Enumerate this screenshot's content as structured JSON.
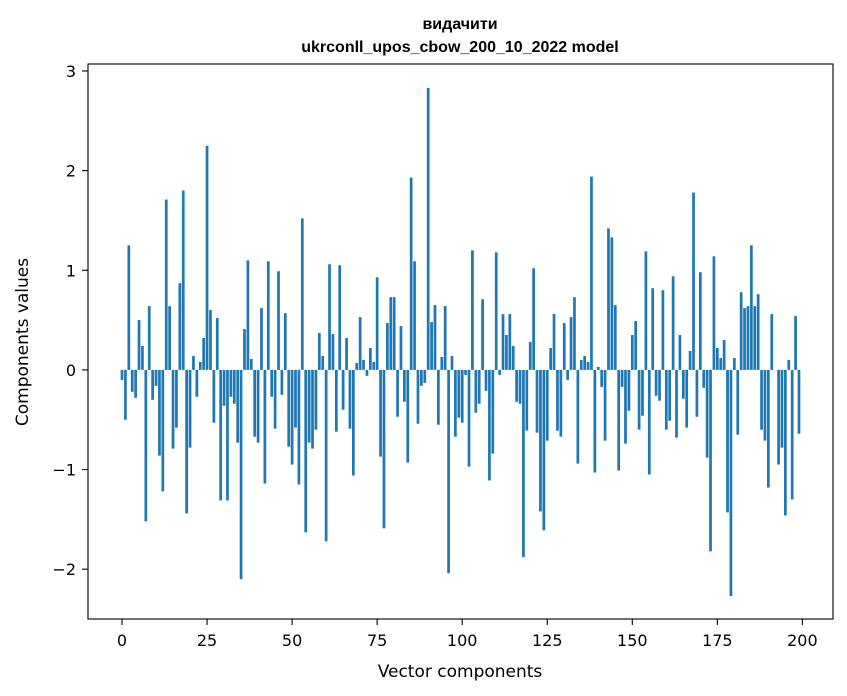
{
  "chart_data": {
    "type": "bar",
    "title_line1": "видачити",
    "title_line2": "ukrconll_upos_cbow_200_10_2022 model",
    "xlabel": "Vector components",
    "ylabel": "Components values",
    "xlim": [
      -10,
      209
    ],
    "ylim": [
      -2.5,
      3.07
    ],
    "xticks": [
      0,
      25,
      50,
      75,
      100,
      125,
      150,
      175,
      200
    ],
    "yticks": [
      -2,
      -1,
      0,
      1,
      2,
      3
    ],
    "ytick_labels": [
      "−2",
      "−1",
      "0",
      "1",
      "2",
      "3"
    ],
    "grid": false,
    "bar_color": "#1f77b4",
    "x": [
      0,
      1,
      2,
      3,
      4,
      5,
      6,
      7,
      8,
      9,
      10,
      11,
      12,
      13,
      14,
      15,
      16,
      17,
      18,
      19,
      20,
      21,
      22,
      23,
      24,
      25,
      26,
      27,
      28,
      29,
      30,
      31,
      32,
      33,
      34,
      35,
      36,
      37,
      38,
      39,
      40,
      41,
      42,
      43,
      44,
      45,
      46,
      47,
      48,
      49,
      50,
      51,
      52,
      53,
      54,
      55,
      56,
      57,
      58,
      59,
      60,
      61,
      62,
      63,
      64,
      65,
      66,
      67,
      68,
      69,
      70,
      71,
      72,
      73,
      74,
      75,
      76,
      77,
      78,
      79,
      80,
      81,
      82,
      83,
      84,
      85,
      86,
      87,
      88,
      89,
      90,
      91,
      92,
      93,
      94,
      95,
      96,
      97,
      98,
      99,
      100,
      101,
      102,
      103,
      104,
      105,
      106,
      107,
      108,
      109,
      110,
      111,
      112,
      113,
      114,
      115,
      116,
      117,
      118,
      119,
      120,
      121,
      122,
      123,
      124,
      125,
      126,
      127,
      128,
      129,
      130,
      131,
      132,
      133,
      134,
      135,
      136,
      137,
      138,
      139,
      140,
      141,
      142,
      143,
      144,
      145,
      146,
      147,
      148,
      149,
      150,
      151,
      152,
      153,
      154,
      155,
      156,
      157,
      158,
      159,
      160,
      161,
      162,
      163,
      164,
      165,
      166,
      167,
      168,
      169,
      170,
      171,
      172,
      173,
      174,
      175,
      176,
      177,
      178,
      179,
      180,
      181,
      182,
      183,
      184,
      185,
      186,
      187,
      188,
      189,
      190,
      191,
      192,
      193,
      194,
      195,
      196,
      197,
      198,
      199
    ],
    "values": [
      -0.1,
      -0.5,
      1.25,
      -0.22,
      -0.28,
      0.5,
      0.24,
      -1.52,
      0.64,
      -0.3,
      -0.16,
      -0.86,
      -1.22,
      1.71,
      0.64,
      -0.79,
      -0.58,
      0.87,
      1.8,
      -1.44,
      -0.78,
      0.14,
      -0.27,
      0.08,
      0.32,
      2.25,
      0.6,
      -0.53,
      0.52,
      -1.31,
      -0.36,
      -1.31,
      -0.27,
      -0.34,
      -0.73,
      -2.1,
      0.41,
      1.1,
      0.11,
      -0.67,
      -0.73,
      0.62,
      -1.14,
      1.09,
      -0.27,
      -0.59,
      0.99,
      -0.25,
      0.57,
      -0.77,
      -0.95,
      -0.58,
      -1.15,
      1.52,
      -1.63,
      -0.73,
      -0.79,
      -0.6,
      0.37,
      0.14,
      -1.72,
      1.06,
      0.36,
      -0.62,
      1.05,
      -0.4,
      0.32,
      -0.59,
      -1.06,
      0.07,
      0.53,
      0.1,
      -0.06,
      0.22,
      0.08,
      0.93,
      -0.87,
      -1.59,
      0.47,
      0.73,
      0.73,
      -0.47,
      0.44,
      -0.32,
      -0.93,
      1.93,
      1.09,
      -0.54,
      -0.16,
      -0.13,
      2.83,
      0.48,
      0.65,
      -0.55,
      0.13,
      0.64,
      -2.04,
      0.14,
      -0.67,
      -0.48,
      -0.53,
      -0.05,
      -0.97,
      1.2,
      -0.43,
      -0.34,
      0.71,
      -0.21,
      -1.11,
      -0.84,
      1.18,
      -0.05,
      0.56,
      0.35,
      0.56,
      0.24,
      -0.32,
      -0.34,
      -1.88,
      -0.61,
      0.28,
      1.02,
      -0.63,
      -1.42,
      -1.61,
      -0.71,
      0.22,
      0.56,
      -0.61,
      -0.67,
      0.47,
      -0.1,
      0.53,
      0.73,
      -0.94,
      0.1,
      0.14,
      0.08,
      1.94,
      -1.03,
      0.03,
      -0.17,
      -0.71,
      1.42,
      1.33,
      0.65,
      -1.01,
      -0.17,
      -0.74,
      -0.41,
      0.35,
      0.49,
      -0.6,
      -0.46,
      1.19,
      -1.05,
      0.82,
      -0.26,
      -0.31,
      0.8,
      -0.6,
      -0.51,
      0.94,
      -0.68,
      0.35,
      -0.29,
      -0.58,
      0.19,
      1.78,
      -0.47,
      0.98,
      -0.18,
      -0.88,
      -1.82,
      1.14,
      0.22,
      0.12,
      0.3,
      -1.43,
      -2.27,
      0.12,
      -0.65,
      0.78,
      0.62,
      0.64,
      1.25,
      0.64,
      0.76,
      -0.6,
      -0.71,
      -1.18,
      0.56,
      0.0,
      -0.95,
      -0.78,
      -1.46,
      0.1,
      -1.3,
      0.54,
      -0.64
    ]
  }
}
